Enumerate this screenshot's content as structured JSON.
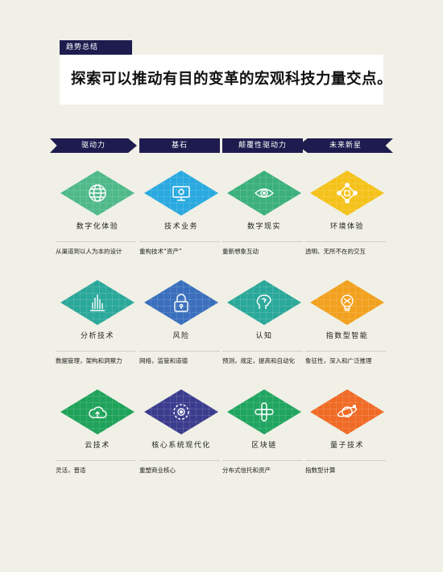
{
  "header": {
    "tag": "趋势总结",
    "title": "探索可以推动有目的变革的宏观科技力量交点。"
  },
  "categories": [
    "驱动力",
    "基石",
    "颠覆性驱动力",
    "未来新星"
  ],
  "rows": [
    [
      {
        "label": "数字化体验",
        "desc": "从渠道到以人为本的设计",
        "color": "#4fb98a",
        "icon": "globe-icon"
      },
      {
        "label": "技术业务",
        "desc": "重构技术“资产”",
        "color": "#29a9df",
        "icon": "monitor-icon"
      },
      {
        "label": "数字现实",
        "desc": "重新想象互动",
        "color": "#3bb07d",
        "icon": "eye-icon"
      },
      {
        "label": "环境体验",
        "desc": "透明、无所不在的交互",
        "color": "#f5c21b",
        "icon": "network-icon"
      }
    ],
    [
      {
        "label": "分析技术",
        "desc": "数据管理，架构和洞察力",
        "color": "#2aa89a",
        "icon": "bar-chart-icon"
      },
      {
        "label": "风险",
        "desc": "网络，监管和道德",
        "color": "#3a6fbd",
        "icon": "lock-icon"
      },
      {
        "label": "认知",
        "desc": "预测，规定，提高和自动化",
        "color": "#2aa89a",
        "icon": "brain-icon"
      },
      {
        "label": "指数型智能",
        "desc": "象征性，深入和广泛推理",
        "color": "#f2a11e",
        "icon": "bulb-icon"
      }
    ],
    [
      {
        "label": "云技术",
        "desc": "灵活，普适",
        "color": "#1fa35a",
        "icon": "cloud-icon"
      },
      {
        "label": "核心系统现代化",
        "desc": "重塑商业核心",
        "color": "#3b3c8e",
        "icon": "cycle-icon"
      },
      {
        "label": "区块链",
        "desc": "分布式信托和资产",
        "color": "#20a560",
        "icon": "chain-icon"
      },
      {
        "label": "量子技术",
        "desc": "指数型计算",
        "color": "#f06b26",
        "icon": "planet-icon"
      }
    ]
  ]
}
